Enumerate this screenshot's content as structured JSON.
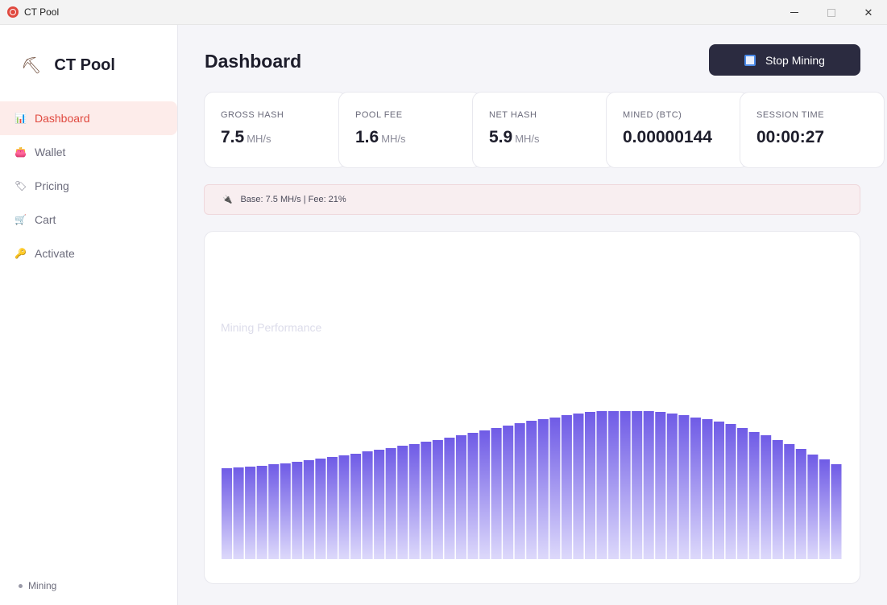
{
  "window": {
    "title": "CT Pool"
  },
  "sidebar": {
    "brand": "CT Pool",
    "items": [
      {
        "label": "Dashboard",
        "icon": "📊"
      },
      {
        "label": "Wallet",
        "icon": "👛"
      },
      {
        "label": "Pricing",
        "icon": "🏷"
      },
      {
        "label": "Cart",
        "icon": "🛒"
      },
      {
        "label": "Activate",
        "icon": "🔑"
      }
    ],
    "status": "Mining"
  },
  "header": {
    "title": "Dashboard",
    "stop_label": "Stop Mining"
  },
  "cards": [
    {
      "label": "GROSS HASH",
      "value": "7.5",
      "unit": "MH/s"
    },
    {
      "label": "POOL FEE",
      "value": "1.6",
      "unit": "MH/s"
    },
    {
      "label": "NET HASH",
      "value": "5.9",
      "unit": "MH/s"
    },
    {
      "label": "MINED (BTC)",
      "value": "0.00000144",
      "unit": ""
    },
    {
      "label": "SESSION TIME",
      "value": "00:00:27",
      "unit": ""
    }
  ],
  "info": {
    "text": "Base: 7.5 MH/s  |  Fee: 21%"
  },
  "chart": {
    "title": "Mining Performance",
    "bar_color_top": "#6f5be6",
    "bar_color_bottom": "#ddd9fb"
  },
  "chart_data": {
    "type": "bar",
    "values": [
      113,
      114,
      115,
      116,
      118,
      119,
      121,
      123,
      125,
      127,
      129,
      131,
      134,
      136,
      138,
      141,
      143,
      146,
      148,
      151,
      154,
      157,
      160,
      163,
      166,
      169,
      172,
      174,
      176,
      179,
      181,
      183,
      184,
      184,
      184,
      184,
      184,
      183,
      181,
      179,
      176,
      174,
      171,
      168,
      163,
      158,
      154,
      148,
      143,
      137,
      130,
      124,
      118
    ]
  }
}
